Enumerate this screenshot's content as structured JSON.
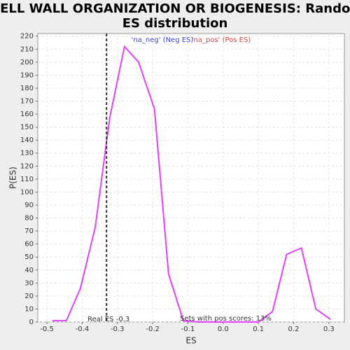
{
  "chart_data": {
    "type": "line",
    "title": "CELL WALL ORGANIZATION OR BIOGENESIS: Random ES distribution",
    "xlabel": "ES",
    "ylabel": "P(ES)",
    "x": [
      -0.485,
      -0.445,
      -0.405,
      -0.363,
      -0.322,
      -0.28,
      -0.24,
      -0.195,
      -0.155,
      -0.113,
      -0.07,
      -0.03,
      0.015,
      0.055,
      0.1,
      0.14,
      0.18,
      0.222,
      0.263,
      0.305
    ],
    "values": [
      1,
      1,
      26,
      73,
      157,
      212,
      200,
      164,
      37,
      1,
      0,
      0,
      0,
      0,
      0,
      8,
      52,
      57,
      10,
      2
    ],
    "color": "#e040fb",
    "legend": [
      {
        "name": "'na_neg' (Neg ES)",
        "color": "#4040e0"
      },
      {
        "name": "'na_pos' (Pos ES)",
        "color": "#e04040"
      }
    ],
    "vline_x": -0.331,
    "annotations": [
      "Real ES -0.3",
      "Sets with pos scores: 13%"
    ],
    "xlim": [
      -0.526,
      0.344
    ],
    "ylim": [
      0,
      222
    ],
    "xticks": [
      -0.5,
      -0.4,
      -0.3,
      -0.2,
      -0.1,
      {
        "value": 0,
        "label": "0.0"
      },
      0.1,
      0.2,
      0.3
    ],
    "yticks": [
      0,
      10,
      20,
      30,
      40,
      50,
      60,
      70,
      80,
      90,
      100,
      110,
      120,
      130,
      140,
      150,
      160,
      170,
      180,
      190,
      200,
      210,
      220
    ],
    "grid": true
  }
}
